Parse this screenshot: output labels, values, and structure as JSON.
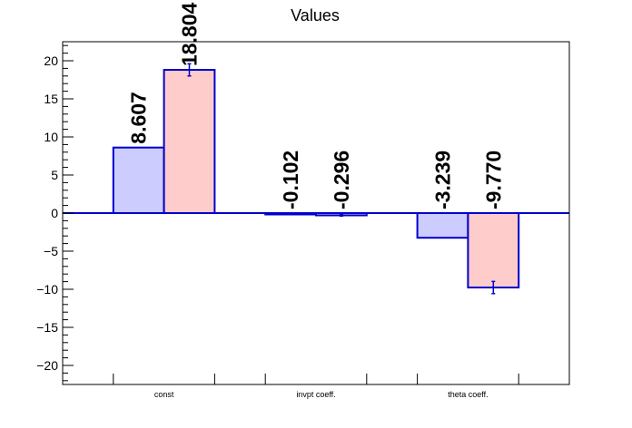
{
  "chart_data": {
    "type": "bar",
    "title": "Values",
    "xlabel": "",
    "ylabel": "",
    "categories": [
      "const",
      "invpt coeff.",
      "theta coeff."
    ],
    "ylim": [
      -22.5,
      22.5
    ],
    "yticks": [
      -20,
      -15,
      -10,
      -5,
      0,
      5,
      10,
      15,
      20
    ],
    "ytick_labels": [
      "−20",
      "−15",
      "−10",
      "−5",
      "0",
      "5",
      "10",
      "15",
      "20"
    ],
    "grid": false,
    "legend": "none",
    "series": [
      {
        "fill": "#ccccff",
        "stroke": "#0000cc",
        "values": [
          8.607,
          -0.102,
          -3.239
        ],
        "labels": [
          "8.607",
          "-0.102",
          "-3.239"
        ],
        "errors": [
          0,
          0,
          0
        ]
      },
      {
        "fill": "#ffcccc",
        "stroke": "#0000cc",
        "values": [
          18.804,
          -0.296,
          -9.77
        ],
        "labels": [
          "18.804",
          "-0.296",
          "-9.770"
        ],
        "errors": [
          0.8,
          0.1,
          0.8
        ]
      }
    ]
  }
}
